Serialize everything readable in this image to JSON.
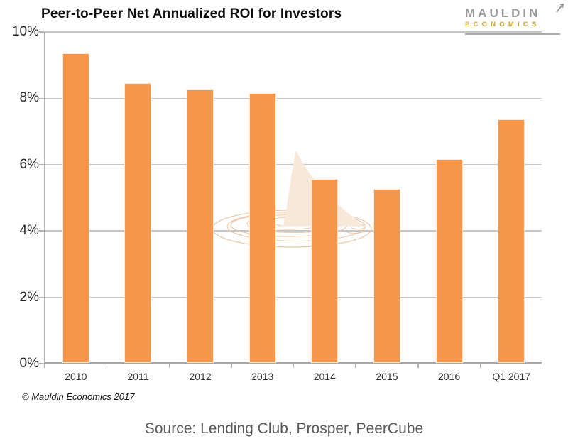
{
  "header": {
    "title": "Peer-to-Peer Net Annualized ROI for Investors",
    "logo": {
      "line1": "MAULDIN",
      "line2": "ECONOMICS"
    }
  },
  "footer": {
    "copyright": "© Mauldin Economics 2017",
    "source": "Source: Lending Club, Prosper, PeerCube"
  },
  "colors": {
    "bar": "#f7964a",
    "gridline": "#c6c6c6",
    "axis": "#a8a8a8",
    "logo_gray": "#9b9b9b",
    "logo_gold": "#d2a62b",
    "watermark_fill": "#f8e8da",
    "watermark_stroke": "#e8c9ac",
    "source_text": "#58595b"
  },
  "chart_data": {
    "type": "bar",
    "title": "Peer-to-Peer Net Annualized ROI for Investors",
    "categories": [
      "2010",
      "2011",
      "2012",
      "2013",
      "2014",
      "2015",
      "2016",
      "Q1 2017"
    ],
    "values": [
      9.3,
      8.4,
      8.2,
      8.1,
      5.5,
      5.2,
      6.1,
      7.3
    ],
    "xlabel": "",
    "ylabel": "",
    "ylim": [
      0,
      10
    ],
    "yticks": [
      0,
      2,
      4,
      6,
      8,
      10
    ],
    "ytick_format": "{v}%",
    "grid": true,
    "legend": false,
    "bar_color": "#f7964a"
  }
}
